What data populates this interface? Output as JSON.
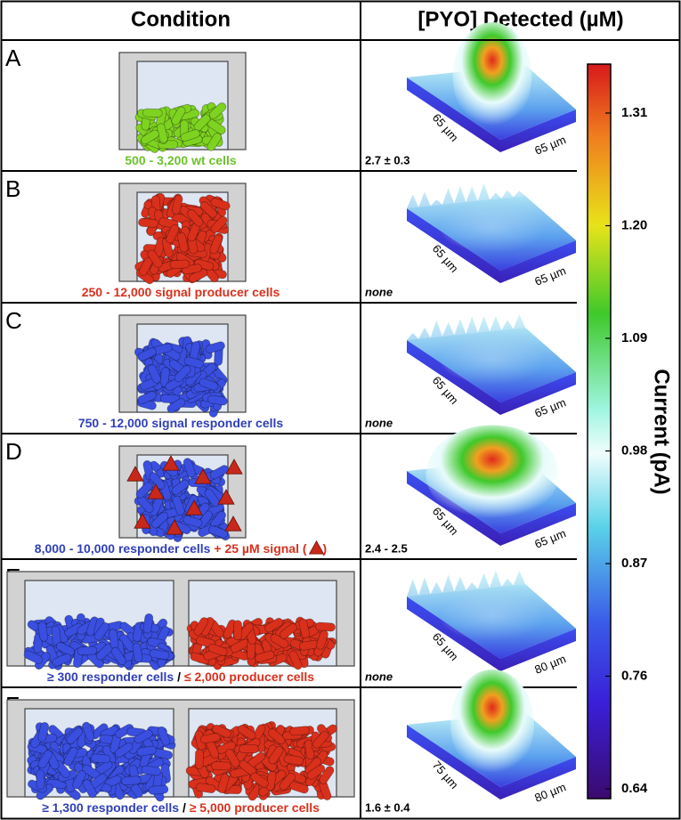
{
  "header": {
    "condition": "Condition",
    "pyo": "[PYO] Detected (µM)"
  },
  "rows": [
    {
      "letter": "A",
      "cells": [
        "#7ed321"
      ],
      "caption": [
        {
          "text": "500 - 3,200 wt cells",
          "color": "#6cc22a"
        }
      ],
      "pyo": "2.7 ± 0.3",
      "pyo_style": "normal",
      "axis_y": "65 µm",
      "axis_x": "65 µm"
    },
    {
      "letter": "B",
      "cells": [
        "#d9301c"
      ],
      "caption": [
        {
          "text": "250 - 12,000 signal producer cells",
          "color": "#d9301c"
        }
      ],
      "pyo": "none",
      "pyo_style": "italic",
      "axis_y": "65 µm",
      "axis_x": "65 µm"
    },
    {
      "letter": "C",
      "cells": [
        "#3a4fe0"
      ],
      "caption": [
        {
          "text": "750 - 12,000 signal responder cells",
          "color": "#2f3fb8"
        }
      ],
      "pyo": "none",
      "pyo_style": "italic",
      "axis_y": "65 µm",
      "axis_x": "65 µm"
    },
    {
      "letter": "D",
      "cells": [
        "#3a4fe0"
      ],
      "signal": true,
      "caption": [
        {
          "text": "8,000 - 10,000 responder cells",
          "color": "#2f3fb8"
        },
        {
          "text": " + 25 µM signal (",
          "color": "#d9301c"
        },
        {
          "text": ")",
          "color": "#d9301c"
        }
      ],
      "pyo": "2.4 - 2.5",
      "pyo_style": "normal",
      "axis_y": "65 µm",
      "axis_x": "65 µm"
    },
    {
      "letter": "E",
      "cells": [
        "#3a4fe0",
        "#d9301c"
      ],
      "caption": [
        {
          "text": "≥ 300 responder cells",
          "color": "#2f3fb8"
        },
        {
          "text": " / ",
          "color": "#000"
        },
        {
          "text": "≤ 2,000 producer cells",
          "color": "#d9301c"
        }
      ],
      "pyo": "none",
      "pyo_style": "italic",
      "axis_y": "65 µm",
      "axis_x": "80 µm"
    },
    {
      "letter": "F",
      "cells": [
        "#3a4fe0",
        "#d9301c"
      ],
      "caption": [
        {
          "text": "≥ 1,300 responder cells",
          "color": "#2f3fb8"
        },
        {
          "text": " / ",
          "color": "#000"
        },
        {
          "text": "≥ 5,000 producer cells",
          "color": "#d9301c"
        }
      ],
      "pyo": "1.6 ± 0.4",
      "pyo_style": "normal",
      "axis_y": "75 µm",
      "axis_x": "80 µm"
    }
  ],
  "colorbar": {
    "label": "Current (pA)",
    "ticks": [
      "1.31",
      "1.20",
      "1.09",
      "0.98",
      "0.87",
      "0.76",
      "0.64"
    ]
  }
}
